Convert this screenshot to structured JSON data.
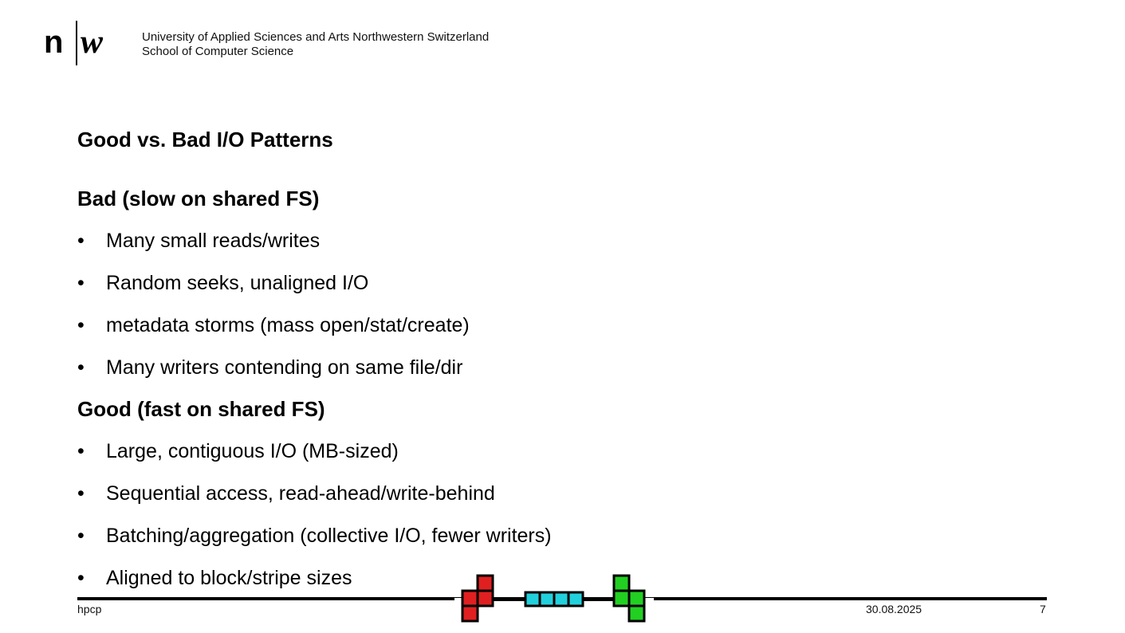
{
  "header": {
    "logo_text": "n|w",
    "institution_line1": "University of Applied Sciences and Arts Northwestern Switzerland",
    "institution_line2": "School of Computer Science"
  },
  "slide": {
    "title": "Good vs. Bad I/O Patterns",
    "bad_heading": "Bad (slow on shared FS)",
    "bad_items": [
      "Many small reads/writes",
      "Random seeks, unaligned I/O",
      "metadata storms (mass open/stat/create)",
      "Many writers contending on same file/dir"
    ],
    "good_heading": "Good (fast on shared FS)",
    "good_items": [
      "Large, contiguous I/O (MB-sized)",
      "Sequential access, read-ahead/write-behind",
      "Batching/aggregation (collective I/O, fewer writers)",
      "Aligned to block/stripe sizes"
    ],
    "bullet_char": "•"
  },
  "footer": {
    "left": "hpcp",
    "date": "30.08.2025",
    "page": "7",
    "tetris_colors": {
      "red": "#e02020",
      "cyan": "#22d0dc",
      "green": "#22d022"
    }
  }
}
